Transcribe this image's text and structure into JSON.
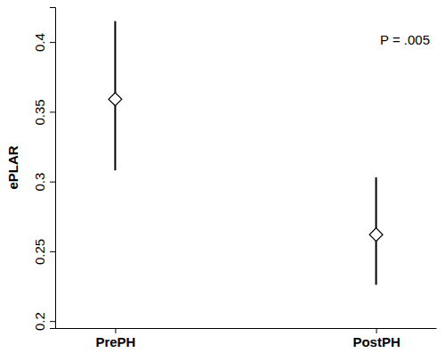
{
  "chart_data": {
    "type": "point",
    "y_label": "ePLAR",
    "annotation": "P = .005",
    "categories": [
      "PrePH",
      "PostPH"
    ],
    "values": [
      0.359,
      0.262
    ],
    "ci_lower": [
      0.308,
      0.226
    ],
    "ci_upper": [
      0.415,
      0.303
    ],
    "color": "#000000",
    "marker": "diamond",
    "ylim": [
      0.195,
      0.425
    ],
    "yticks": [
      0.2,
      0.25,
      0.3,
      0.35,
      0.4
    ]
  }
}
